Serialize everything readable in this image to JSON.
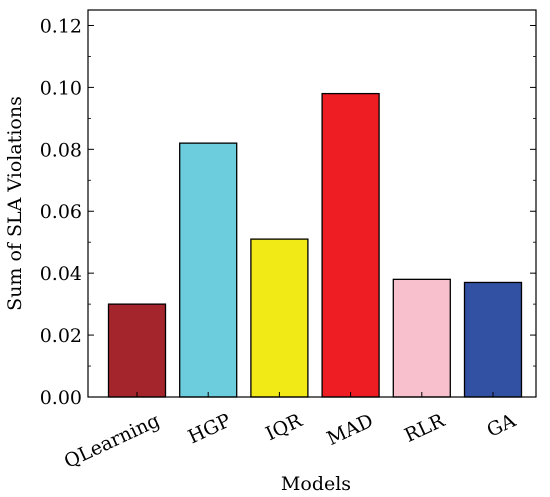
{
  "chart_data": {
    "type": "bar",
    "title": "",
    "xlabel": "Models",
    "ylabel": "Sum of SLA Violations",
    "categories": [
      "QLearning",
      "HGP",
      "IQR",
      "MAD",
      "RLR",
      "GA"
    ],
    "values": [
      0.03,
      0.082,
      0.051,
      0.098,
      0.038,
      0.037
    ],
    "colors": [
      "#a4262c",
      "#6ccddc",
      "#f2ea17",
      "#ee1d24",
      "#f7c0cc",
      "#3351a3"
    ],
    "ylim": [
      0,
      0.125
    ],
    "yticks": [
      0.0,
      0.02,
      0.04,
      0.06,
      0.08,
      0.1,
      0.12
    ],
    "ytick_labels": [
      "0.00",
      "0.02",
      "0.04",
      "0.06",
      "0.08",
      "0.10",
      "0.12"
    ],
    "grid": false,
    "legend": "none"
  }
}
